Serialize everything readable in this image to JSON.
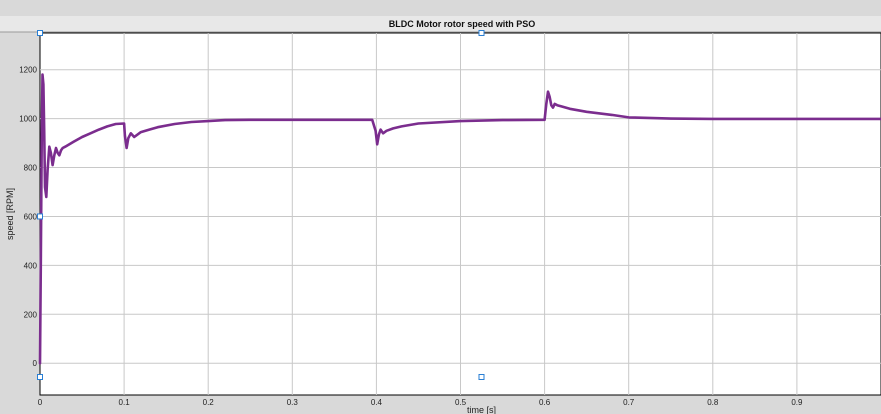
{
  "chart_data": {
    "type": "line",
    "title": "BLDC Motor rotor speed with PSO",
    "xlabel": "time [s]",
    "ylabel": "speed [RPM]",
    "xlim": [
      0,
      1.0
    ],
    "ylim": [
      -130,
      1350
    ],
    "x_ticks": [
      0,
      0.1,
      0.2,
      0.3,
      0.4,
      0.5,
      0.6,
      0.7,
      0.8,
      0.9
    ],
    "x_tick_labels": [
      "0",
      "0.1",
      "0.2",
      "0.3",
      "0.4",
      "0.5",
      "0.6",
      "0.7",
      "0.8",
      "0.9"
    ],
    "y_ticks": [
      0,
      200,
      400,
      600,
      800,
      1000,
      1200
    ],
    "y_tick_labels": [
      "0",
      "200",
      "400",
      "600",
      "800",
      "1000",
      "1200"
    ],
    "grid": true,
    "series": [
      {
        "color": "#7b2d8e",
        "x": [
          0,
          0.001,
          0.002,
          0.003,
          0.004,
          0.005,
          0.006,
          0.0075,
          0.009,
          0.011,
          0.013,
          0.015,
          0.017,
          0.019,
          0.021,
          0.023,
          0.025,
          0.027,
          0.03,
          0.04,
          0.05,
          0.06,
          0.07,
          0.08,
          0.09,
          0.1,
          0.101,
          0.103,
          0.105,
          0.108,
          0.112,
          0.12,
          0.13,
          0.14,
          0.16,
          0.18,
          0.2,
          0.22,
          0.25,
          0.3,
          0.35,
          0.395,
          0.399,
          0.401,
          0.403,
          0.405,
          0.408,
          0.412,
          0.42,
          0.43,
          0.45,
          0.5,
          0.55,
          0.6,
          0.602,
          0.604,
          0.606,
          0.608,
          0.61,
          0.612,
          0.615,
          0.62,
          0.63,
          0.65,
          0.68,
          0.7,
          0.75,
          0.8,
          0.9,
          1.0
        ],
        "y": [
          0,
          400,
          900,
          1180,
          1140,
          950,
          720,
          680,
          790,
          885,
          860,
          810,
          850,
          880,
          860,
          850,
          870,
          880,
          885,
          905,
          925,
          940,
          955,
          968,
          978,
          980,
          930,
          880,
          920,
          940,
          925,
          945,
          955,
          965,
          978,
          986,
          990,
          994,
          995,
          995,
          995,
          995,
          950,
          895,
          935,
          955,
          940,
          950,
          960,
          968,
          980,
          990,
          994,
          995,
          1060,
          1110,
          1090,
          1055,
          1045,
          1060,
          1055,
          1050,
          1040,
          1028,
          1015,
          1005,
          1000,
          999,
          999,
          999
        ]
      }
    ]
  }
}
